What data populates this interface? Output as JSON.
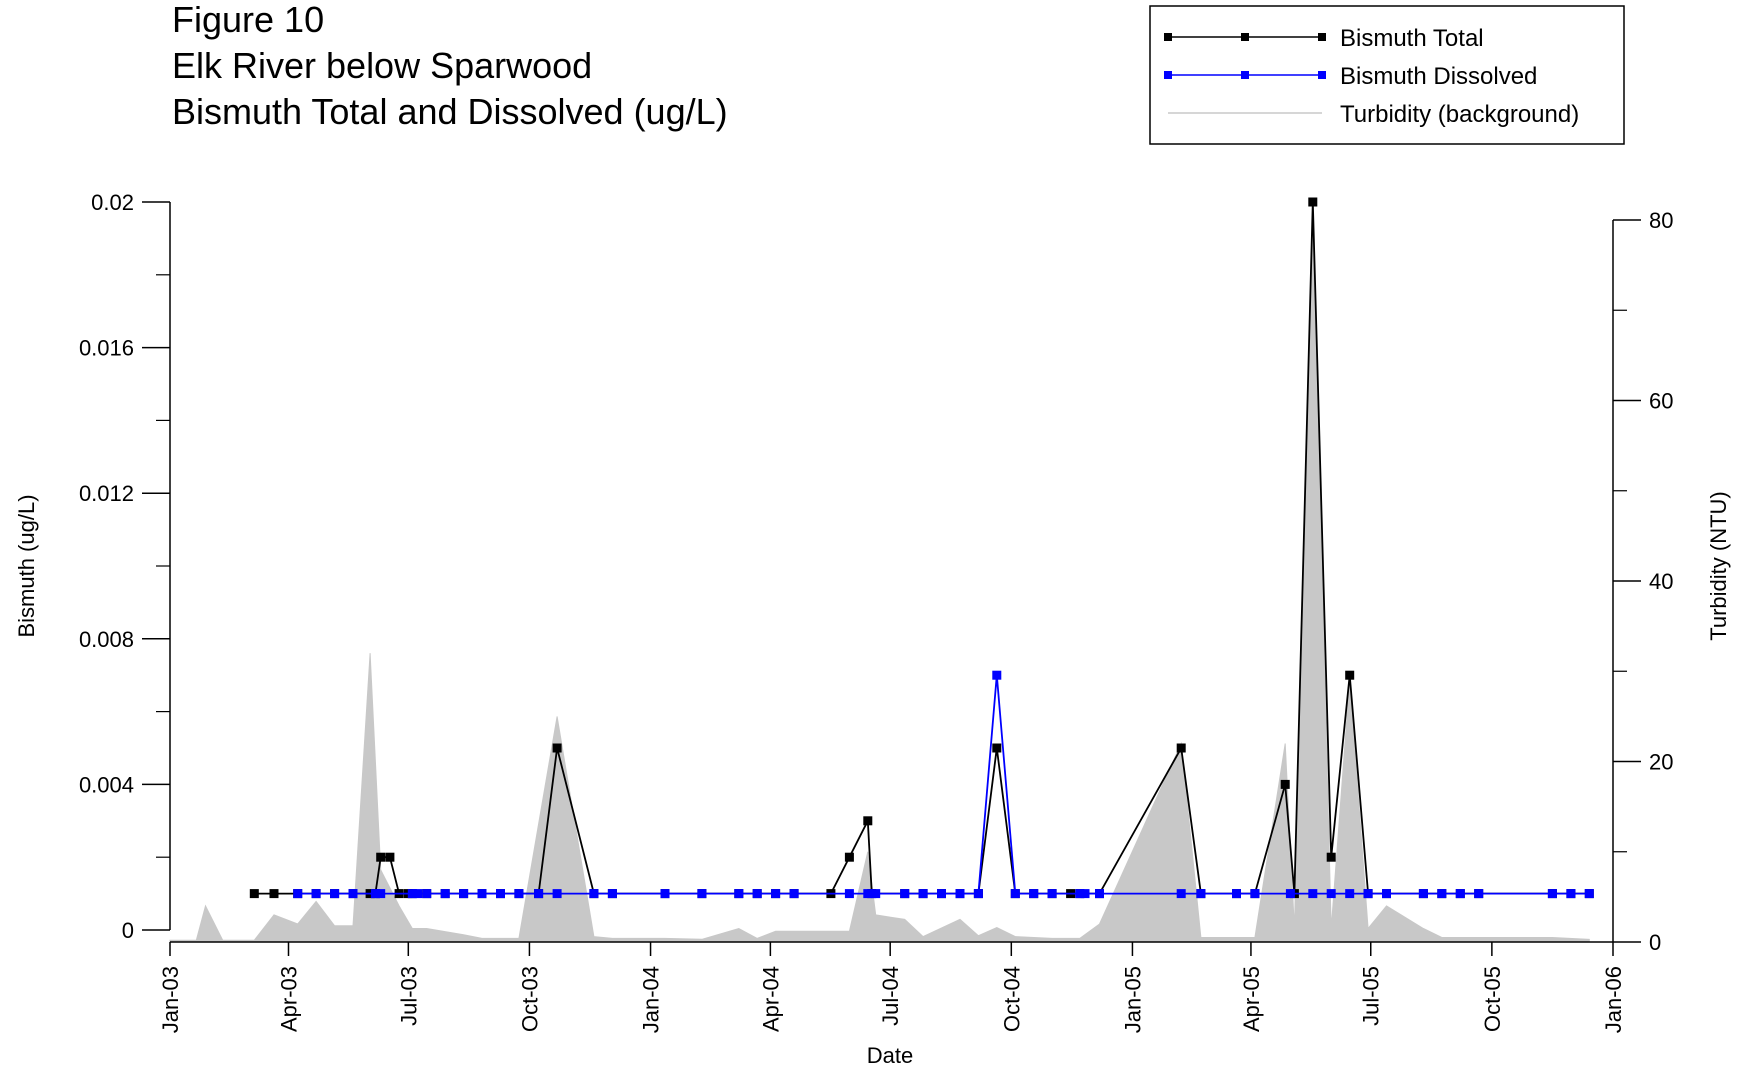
{
  "title_lines": [
    "Figure 10",
    "Elk River below Sparwood",
    "Bismuth Total and Dissolved (ug/L)"
  ],
  "chart_data": {
    "type": "line",
    "title": "Figure 10 Elk River below Sparwood Bismuth Total and Dissolved (ug/L)",
    "xlabel": "Date",
    "ylabel": "Bismuth (ug/L)",
    "y2label": "Turbidity (NTU)",
    "xlim": [
      "2003-01-01",
      "2006-01-01"
    ],
    "ylim": [
      0,
      0.02
    ],
    "y2lim": [
      0,
      80
    ],
    "x_ticks": [
      {
        "date": "2003-01-01",
        "label": "Jan-03"
      },
      {
        "date": "2003-04-01",
        "label": "Apr-03"
      },
      {
        "date": "2003-07-01",
        "label": "Jul-03"
      },
      {
        "date": "2003-10-01",
        "label": "Oct-03"
      },
      {
        "date": "2004-01-01",
        "label": "Jan-04"
      },
      {
        "date": "2004-04-01",
        "label": "Apr-04"
      },
      {
        "date": "2004-07-01",
        "label": "Jul-04"
      },
      {
        "date": "2004-10-01",
        "label": "Oct-04"
      },
      {
        "date": "2005-01-01",
        "label": "Jan-05"
      },
      {
        "date": "2005-04-01",
        "label": "Apr-05"
      },
      {
        "date": "2005-07-01",
        "label": "Jul-05"
      },
      {
        "date": "2005-10-01",
        "label": "Oct-05"
      },
      {
        "date": "2006-01-01",
        "label": "Jan-06"
      }
    ],
    "y_ticks": [
      {
        "value": 0,
        "label": "0"
      },
      {
        "value": 0.004,
        "label": "0.004"
      },
      {
        "value": 0.008,
        "label": "0.008"
      },
      {
        "value": 0.012,
        "label": "0.012"
      },
      {
        "value": 0.016,
        "label": "0.016"
      },
      {
        "value": 0.02,
        "label": "0.02"
      }
    ],
    "y2_ticks": [
      {
        "value": 0,
        "label": "0"
      },
      {
        "value": 20,
        "label": "20"
      },
      {
        "value": 40,
        "label": "40"
      },
      {
        "value": 60,
        "label": "60"
      },
      {
        "value": 80,
        "label": "80"
      }
    ],
    "legend_position": "top-right",
    "series": [
      {
        "name": "Bismuth Total",
        "color": "#000000",
        "axis": "left",
        "points": [
          [
            "2003-03-06",
            0.001
          ],
          [
            "2003-03-21",
            0.001
          ],
          [
            "2003-04-08",
            0.001
          ],
          [
            "2003-04-22",
            0.001
          ],
          [
            "2003-05-06",
            0.001
          ],
          [
            "2003-05-20",
            0.001
          ],
          [
            "2003-06-02",
            0.001
          ],
          [
            "2003-06-06",
            0.001
          ],
          [
            "2003-06-10",
            0.002
          ],
          [
            "2003-06-17",
            0.002
          ],
          [
            "2003-06-24",
            0.001
          ],
          [
            "2003-07-01",
            0.001
          ],
          [
            "2003-07-04",
            0.001
          ],
          [
            "2003-07-15",
            0.001
          ],
          [
            "2003-07-29",
            0.001
          ],
          [
            "2003-08-12",
            0.001
          ],
          [
            "2003-08-26",
            0.001
          ],
          [
            "2003-09-09",
            0.001
          ],
          [
            "2003-09-23",
            0.001
          ],
          [
            "2003-10-08",
            0.001
          ],
          [
            "2003-10-22",
            0.005
          ],
          [
            "2003-11-19",
            0.001
          ],
          [
            "2003-12-03",
            0.001
          ],
          [
            "2004-01-12",
            0.001
          ],
          [
            "2004-02-09",
            0.001
          ],
          [
            "2004-03-08",
            0.001
          ],
          [
            "2004-03-22",
            0.001
          ],
          [
            "2004-04-05",
            0.001
          ],
          [
            "2004-04-19",
            0.001
          ],
          [
            "2004-05-17",
            0.001
          ],
          [
            "2004-05-31",
            0.002
          ],
          [
            "2004-06-14",
            0.003
          ],
          [
            "2004-06-17",
            0.001
          ],
          [
            "2004-07-12",
            0.001
          ],
          [
            "2004-07-26",
            0.001
          ],
          [
            "2004-08-09",
            0.001
          ],
          [
            "2004-08-23",
            0.001
          ],
          [
            "2004-09-06",
            0.001
          ],
          [
            "2004-09-20",
            0.005
          ],
          [
            "2004-10-04",
            0.001
          ],
          [
            "2004-10-18",
            0.001
          ],
          [
            "2004-11-01",
            0.001
          ],
          [
            "2004-11-15",
            0.001
          ],
          [
            "2004-11-22",
            0.001
          ],
          [
            "2004-12-07",
            0.001
          ],
          [
            "2005-02-07",
            0.005
          ],
          [
            "2005-02-22",
            0.001
          ],
          [
            "2005-03-21",
            0.001
          ],
          [
            "2005-04-04",
            0.001
          ],
          [
            "2005-04-27",
            0.004
          ],
          [
            "2005-05-04",
            0.001
          ],
          [
            "2005-05-18",
            0.02
          ],
          [
            "2005-06-01",
            0.002
          ],
          [
            "2005-06-15",
            0.007
          ],
          [
            "2005-06-29",
            0.001
          ],
          [
            "2005-07-13",
            0.001
          ],
          [
            "2005-08-10",
            0.001
          ],
          [
            "2005-08-24",
            0.001
          ],
          [
            "2005-09-07",
            0.001
          ],
          [
            "2005-09-21",
            0.001
          ],
          [
            "2005-11-16",
            0.001
          ],
          [
            "2005-11-30",
            0.001
          ],
          [
            "2005-12-14",
            0.001
          ]
        ]
      },
      {
        "name": "Bismuth Dissolved",
        "color": "#0000ff",
        "axis": "left",
        "points": [
          [
            "2003-04-08",
            0.001
          ],
          [
            "2003-04-22",
            0.001
          ],
          [
            "2003-05-06",
            0.001
          ],
          [
            "2003-05-20",
            0.001
          ],
          [
            "2003-06-06",
            0.001
          ],
          [
            "2003-06-10",
            0.001
          ],
          [
            "2003-07-04",
            0.001
          ],
          [
            "2003-07-08",
            0.001
          ],
          [
            "2003-07-15",
            0.001
          ],
          [
            "2003-07-29",
            0.001
          ],
          [
            "2003-08-12",
            0.001
          ],
          [
            "2003-08-26",
            0.001
          ],
          [
            "2003-09-09",
            0.001
          ],
          [
            "2003-09-23",
            0.001
          ],
          [
            "2003-10-08",
            0.001
          ],
          [
            "2003-10-22",
            0.001
          ],
          [
            "2003-11-19",
            0.001
          ],
          [
            "2003-12-03",
            0.001
          ],
          [
            "2004-01-12",
            0.001
          ],
          [
            "2004-02-09",
            0.001
          ],
          [
            "2004-03-08",
            0.001
          ],
          [
            "2004-03-22",
            0.001
          ],
          [
            "2004-04-05",
            0.001
          ],
          [
            "2004-04-19",
            0.001
          ],
          [
            "2004-05-31",
            0.001
          ],
          [
            "2004-06-14",
            0.001
          ],
          [
            "2004-06-20",
            0.001
          ],
          [
            "2004-07-12",
            0.001
          ],
          [
            "2004-07-26",
            0.001
          ],
          [
            "2004-08-09",
            0.001
          ],
          [
            "2004-08-23",
            0.001
          ],
          [
            "2004-09-06",
            0.001
          ],
          [
            "2004-09-20",
            0.007
          ],
          [
            "2004-10-04",
            0.001
          ],
          [
            "2004-10-18",
            0.001
          ],
          [
            "2004-11-01",
            0.001
          ],
          [
            "2004-11-22",
            0.001
          ],
          [
            "2004-11-26",
            0.001
          ],
          [
            "2004-12-07",
            0.001
          ],
          [
            "2005-02-07",
            0.001
          ],
          [
            "2005-02-22",
            0.001
          ],
          [
            "2005-03-21",
            0.001
          ],
          [
            "2005-04-04",
            0.001
          ],
          [
            "2005-05-01",
            0.001
          ],
          [
            "2005-05-18",
            0.001
          ],
          [
            "2005-06-01",
            0.001
          ],
          [
            "2005-06-15",
            0.001
          ],
          [
            "2005-06-29",
            0.001
          ],
          [
            "2005-07-13",
            0.001
          ],
          [
            "2005-08-10",
            0.001
          ],
          [
            "2005-08-24",
            0.001
          ],
          [
            "2005-09-07",
            0.001
          ],
          [
            "2005-09-21",
            0.001
          ],
          [
            "2005-11-16",
            0.001
          ],
          [
            "2005-11-30",
            0.001
          ],
          [
            "2005-12-14",
            0.001
          ]
        ]
      },
      {
        "name": "Turbidity (background)",
        "color": "#c8c8c8",
        "axis": "right",
        "style": "area",
        "points": [
          [
            "2003-01-01",
            0.2
          ],
          [
            "2003-01-21",
            0.2
          ],
          [
            "2003-01-28",
            4
          ],
          [
            "2003-02-10",
            0.2
          ],
          [
            "2003-03-06",
            0.2
          ],
          [
            "2003-03-21",
            3
          ],
          [
            "2003-04-08",
            2
          ],
          [
            "2003-04-22",
            4.5
          ],
          [
            "2003-05-06",
            1.8
          ],
          [
            "2003-05-20",
            1.8
          ],
          [
            "2003-06-02",
            32
          ],
          [
            "2003-06-10",
            8
          ],
          [
            "2003-06-24",
            4
          ],
          [
            "2003-07-04",
            1.5
          ],
          [
            "2003-07-15",
            1.5
          ],
          [
            "2003-08-12",
            0.8
          ],
          [
            "2003-08-26",
            0.4
          ],
          [
            "2003-09-23",
            0.4
          ],
          [
            "2003-10-22",
            25
          ],
          [
            "2003-11-19",
            0.6
          ],
          [
            "2003-12-03",
            0.4
          ],
          [
            "2004-01-12",
            0.4
          ],
          [
            "2004-02-09",
            0.3
          ],
          [
            "2004-03-08",
            1.5
          ],
          [
            "2004-03-22",
            0.4
          ],
          [
            "2004-04-05",
            1.2
          ],
          [
            "2004-05-17",
            1.2
          ],
          [
            "2004-05-31",
            1.2
          ],
          [
            "2004-06-14",
            10
          ],
          [
            "2004-06-20",
            3
          ],
          [
            "2004-07-12",
            2.5
          ],
          [
            "2004-07-26",
            0.6
          ],
          [
            "2004-08-23",
            2.5
          ],
          [
            "2004-09-06",
            0.7
          ],
          [
            "2004-09-20",
            1.6
          ],
          [
            "2004-10-04",
            0.6
          ],
          [
            "2004-11-01",
            0.4
          ],
          [
            "2004-11-22",
            0.4
          ],
          [
            "2004-12-07",
            2
          ],
          [
            "2005-02-07",
            22
          ],
          [
            "2005-02-22",
            0.5
          ],
          [
            "2005-03-21",
            0.5
          ],
          [
            "2005-04-04",
            0.5
          ],
          [
            "2005-04-27",
            22
          ],
          [
            "2005-05-04",
            1.5
          ],
          [
            "2005-05-18",
            82
          ],
          [
            "2005-06-01",
            1.5
          ],
          [
            "2005-06-15",
            29
          ],
          [
            "2005-06-29",
            1.5
          ],
          [
            "2005-07-13",
            4
          ],
          [
            "2005-08-10",
            1.5
          ],
          [
            "2005-08-24",
            0.5
          ],
          [
            "2005-09-21",
            0.5
          ],
          [
            "2005-11-16",
            0.5
          ],
          [
            "2005-12-14",
            0.3
          ]
        ]
      }
    ]
  }
}
